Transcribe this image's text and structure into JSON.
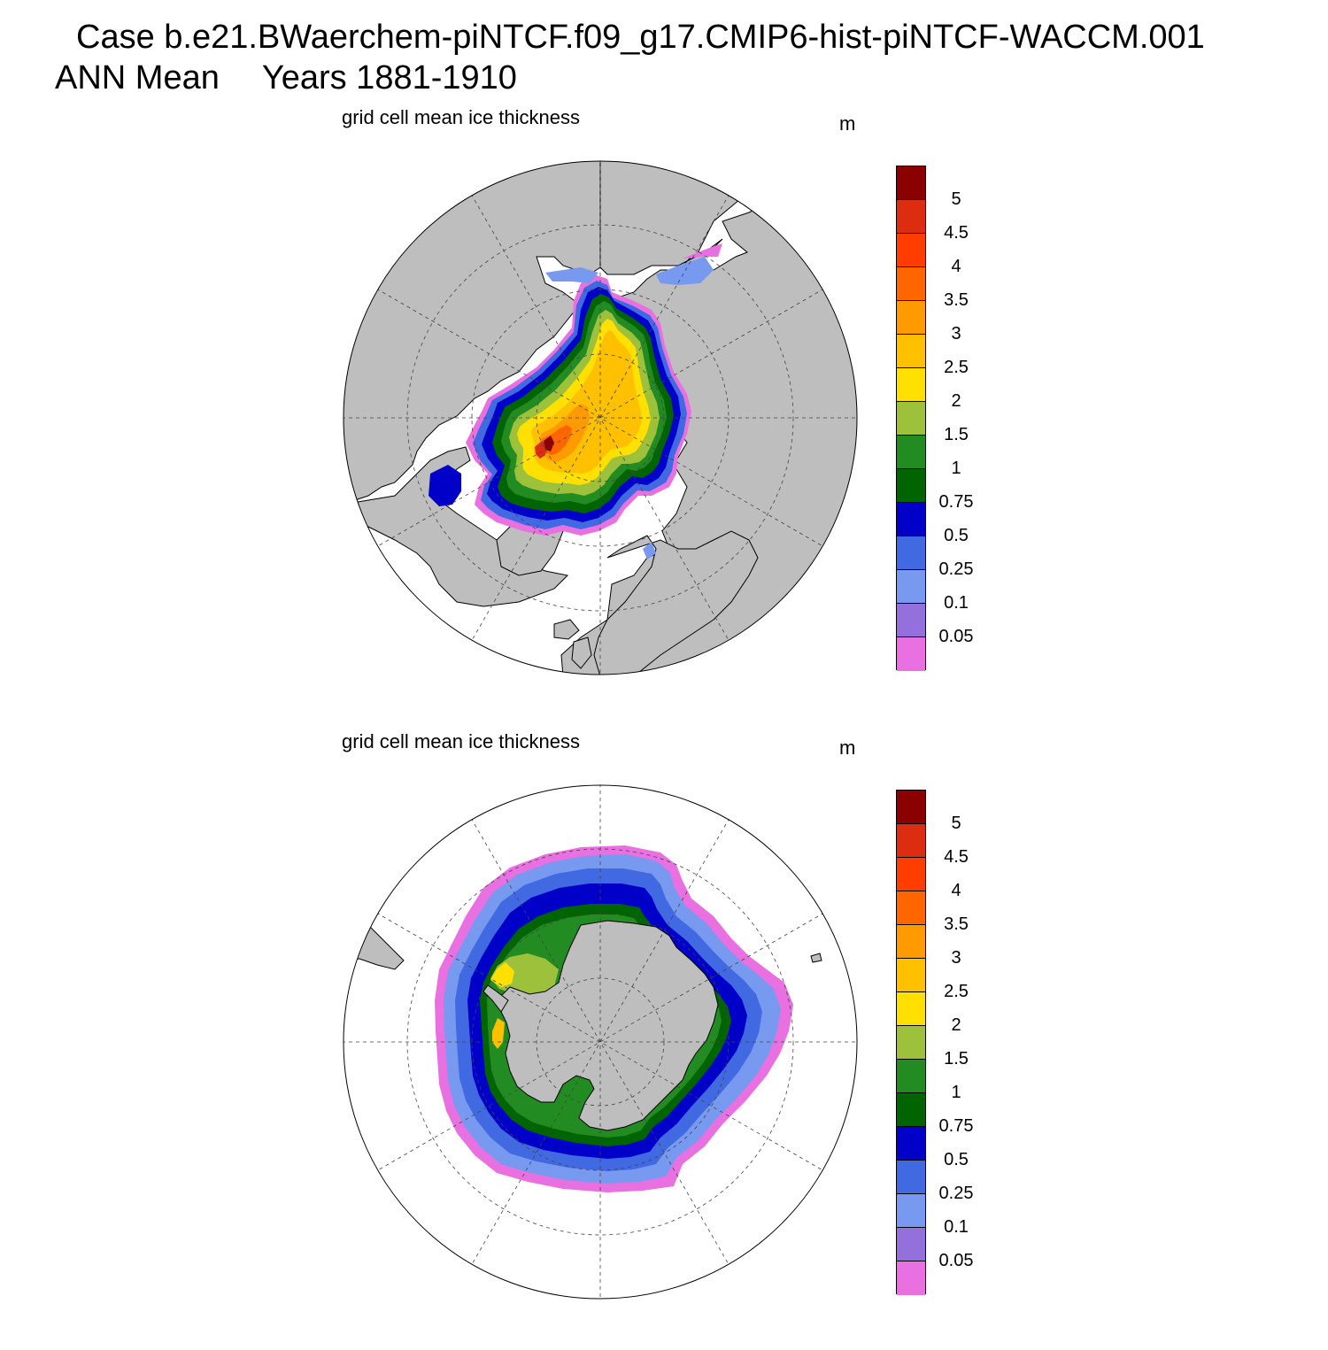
{
  "header": {
    "case_title": "Case b.e21.BWaerchem-piNTCF.f09_g17.CMIP6-hist-piNTCF-WACCM.001",
    "season": "ANN Mean",
    "years": "Years 1881-1910"
  },
  "colors": {
    "land": "#bebebe",
    "ocean": "#ffffff",
    "coast": "#000000",
    "grid": "#444444"
  },
  "colorbar": {
    "labels": [
      "5",
      "4.5",
      "4",
      "3.5",
      "3",
      "2.5",
      "2",
      "1.5",
      "1",
      "0.75",
      "0.5",
      "0.25",
      "0.1",
      "0.05"
    ],
    "colors": [
      "#8b0000",
      "#dc2d10",
      "#ff3d00",
      "#ff6600",
      "#ff9a00",
      "#ffc000",
      "#ffe000",
      "#9dc13a",
      "#228b22",
      "#006400",
      "#0000c8",
      "#4169e1",
      "#7799f0",
      "#9370db",
      "#e870e0"
    ]
  },
  "panels": [
    {
      "id": "north",
      "title": "grid cell mean ice thickness",
      "units": "m",
      "hemisphere": "Northern Hemisphere, polar stereographic"
    },
    {
      "id": "south",
      "title": "grid cell mean ice thickness",
      "units": "m",
      "hemisphere": "Southern Hemisphere, polar stereographic"
    }
  ]
}
